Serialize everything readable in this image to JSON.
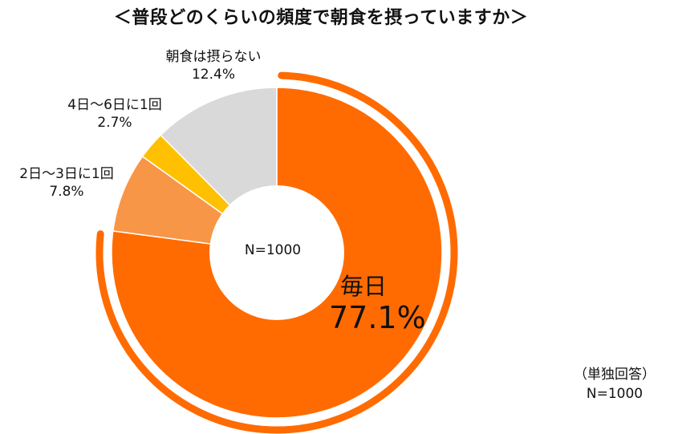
{
  "title": "＜普段どのくらいの頻度で朝食を摂っていますか＞",
  "center_label": "N=1000",
  "note": {
    "line1": "（単独回答）",
    "line2": "N=1000"
  },
  "colors": {
    "daily": "#FF6B00",
    "two_three": "#F79646",
    "four_six": "#FFC000",
    "none": "#D9D9D9",
    "arc": "#FF6B00"
  },
  "chart_data": {
    "type": "pie",
    "donut": true,
    "title": "＜普段どのくらいの頻度で朝食を摂っていますか＞",
    "categories": [
      "毎日",
      "2日～3日に1回",
      "4日～6日に1回",
      "朝食は摂らない"
    ],
    "values": [
      77.1,
      7.8,
      2.7,
      12.4
    ],
    "value_labels": [
      "77.1%",
      "7.8%",
      "2.7%",
      "12.4%"
    ],
    "unit": "%",
    "n": "N=1000"
  }
}
